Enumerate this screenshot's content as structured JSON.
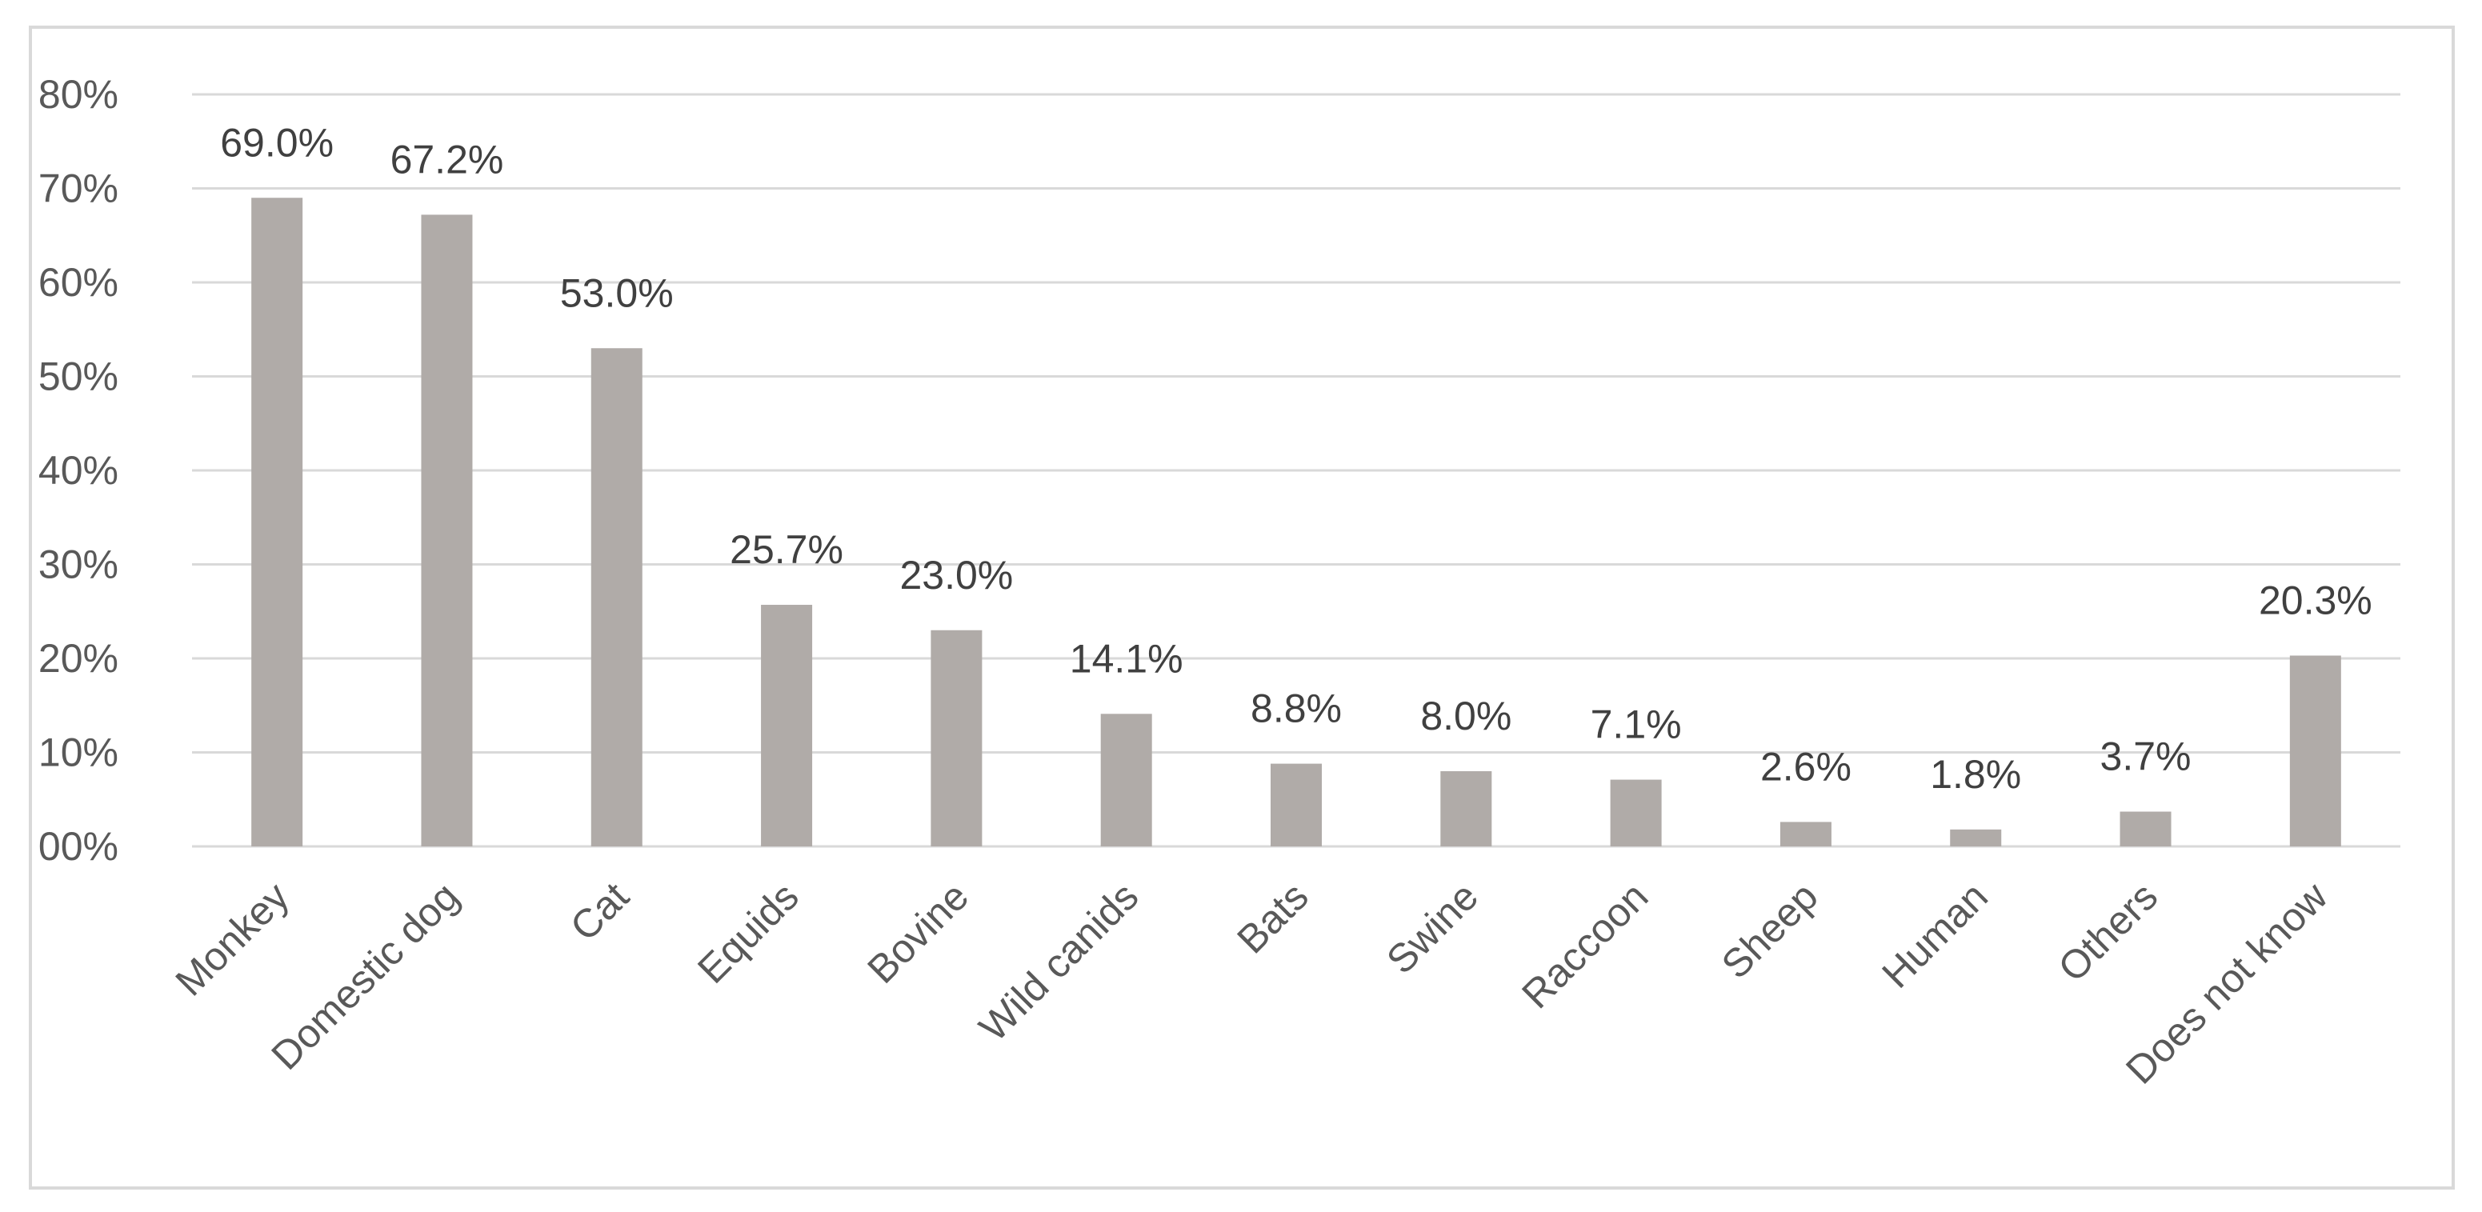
{
  "chart_data": {
    "type": "bar",
    "title": "",
    "xlabel": "",
    "ylabel": "",
    "categories": [
      "Monkey",
      "Domestic dog",
      "Cat",
      "Equids",
      "Bovine",
      "Wild canids",
      "Bats",
      "Swine",
      "Raccoon",
      "Sheep",
      "Human",
      "Others",
      "Does not know"
    ],
    "values": [
      69.0,
      67.2,
      53.0,
      25.7,
      23.0,
      14.1,
      8.8,
      8.0,
      7.1,
      2.6,
      1.8,
      3.7,
      20.3
    ],
    "data_labels": [
      "69.0%",
      "67.2%",
      "53.0%",
      "25.7%",
      "23.0%",
      "14.1%",
      "8.8%",
      "8.0%",
      "7.1%",
      "2.6%",
      "1.8%",
      "3.7%",
      "20.3%"
    ],
    "ylim": [
      0,
      80
    ],
    "y_ticks": [
      0,
      10,
      20,
      30,
      40,
      50,
      60,
      70,
      80
    ],
    "y_tick_labels": [
      "00%",
      "10%",
      "20%",
      "30%",
      "40%",
      "50%",
      "60%",
      "70%",
      "80%"
    ],
    "grid": true,
    "legend": "none",
    "bar_color": "#b0aba8",
    "grid_color": "#d9d9d9"
  }
}
